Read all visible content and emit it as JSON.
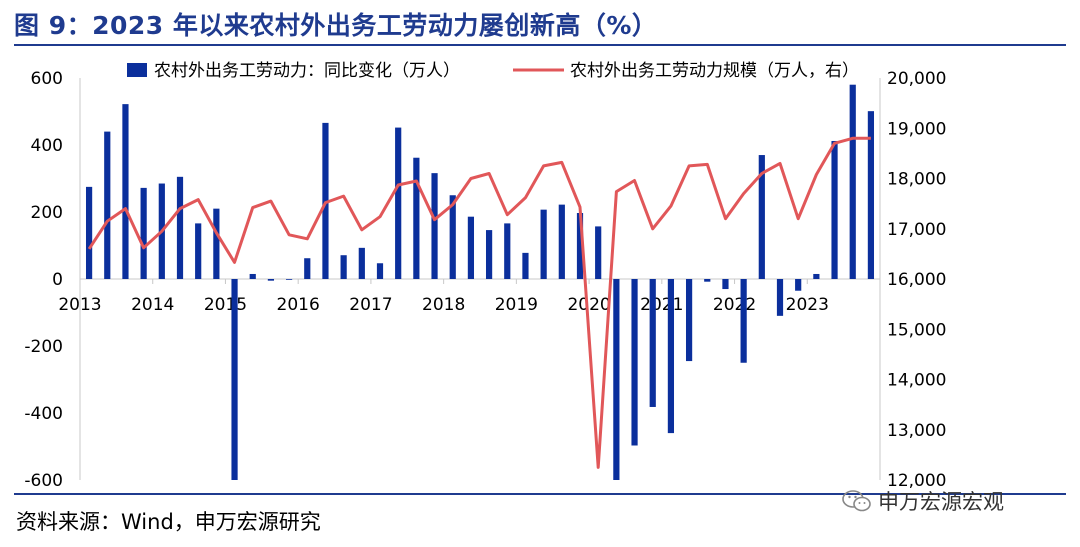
{
  "title": "图 9：2023 年以来农村外出务工劳动力屡创新高（%）",
  "source": "资料来源：Wind，申万宏源研究",
  "watermark": "申万宏源宏观",
  "colors": {
    "bar": "#0b2f9c",
    "line": "#e15759",
    "title": "#1f3b8f"
  },
  "chart_data": {
    "type": "bar+line",
    "legend": [
      "农村外出务工劳动力：同比变化（万人）",
      "农村外出务工劳动力规模（万人，右）"
    ],
    "x_ticks": [
      "2013",
      "2014",
      "2015",
      "2016",
      "2017",
      "2018",
      "2019",
      "2020",
      "2021",
      "2022",
      "2023"
    ],
    "y_left": {
      "ticks": [
        "-600",
        "-400",
        "-200",
        "0",
        "200",
        "400",
        "600"
      ],
      "range": [
        -600,
        600
      ]
    },
    "y_right": {
      "ticks": [
        "12,000",
        "13,000",
        "14,000",
        "15,000",
        "16,000",
        "17,000",
        "18,000",
        "19,000",
        "20,000"
      ],
      "range": [
        12000,
        20000
      ]
    },
    "periods_per_year": 4,
    "start_year": 2013,
    "bars": [
      275,
      440,
      522,
      272,
      285,
      305,
      166,
      210,
      -600,
      15,
      -5,
      0,
      62,
      466,
      71,
      93,
      47,
      452,
      362,
      316,
      250,
      186,
      146,
      166,
      78,
      207,
      222,
      197,
      157,
      -600,
      -497,
      -382,
      -460,
      -245,
      -8,
      -30,
      -250,
      370,
      -110,
      -35,
      15,
      412,
      580,
      501
    ],
    "line": [
      16600,
      17150,
      17400,
      16620,
      16950,
      17400,
      17580,
      16920,
      16330,
      17420,
      17550,
      16880,
      16800,
      17520,
      17650,
      16980,
      17240,
      17870,
      17950,
      17180,
      17480,
      18000,
      18100,
      17280,
      17620,
      18250,
      18320,
      17430,
      12250,
      17740,
      17960,
      17000,
      17450,
      18250,
      18280,
      17200,
      17700,
      18100,
      18300,
      17200,
      18080,
      18700,
      18800,
      18800
    ]
  }
}
